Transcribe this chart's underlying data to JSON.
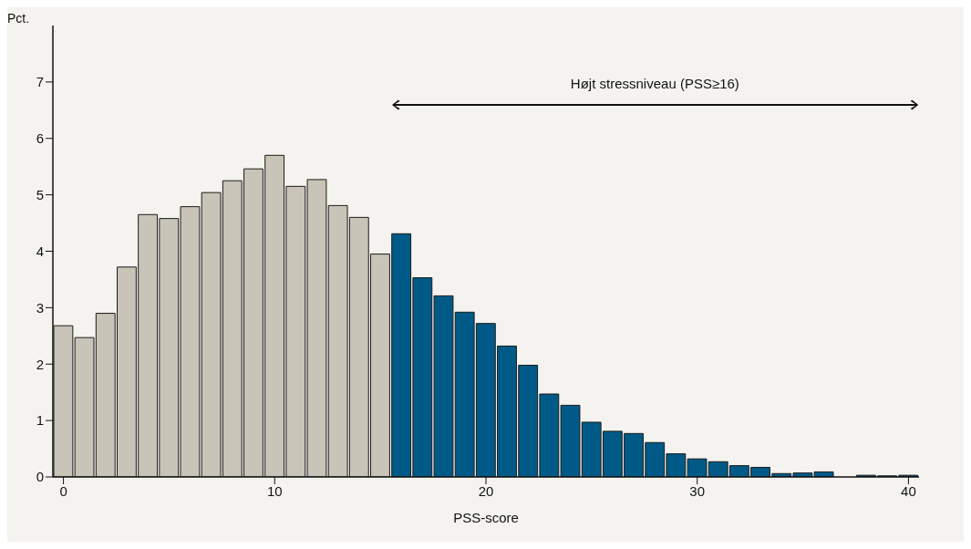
{
  "chart_data": {
    "type": "histogram",
    "xlabel": "PSS-score",
    "ylabel": "Pct.",
    "bins": [
      -0.5,
      0.5,
      1.5,
      2.5,
      3.5,
      4.5,
      5.5,
      6.5,
      7.5,
      8.5,
      9.5,
      10.5,
      11.5,
      12.5,
      13.5,
      14.5,
      15.5,
      16.5,
      17.5,
      18.5,
      19.5,
      20.5,
      21.5,
      22.5,
      23.5,
      24.5,
      25.5,
      26.5,
      27.5,
      28.5,
      29.5,
      30.5,
      31.5,
      32.5,
      33.5,
      34.5,
      35.5,
      36.5,
      37.5,
      38.5,
      39.5,
      40.5
    ],
    "values": [
      2.68,
      2.47,
      2.9,
      3.72,
      4.65,
      4.58,
      4.79,
      5.04,
      5.25,
      5.46,
      5.7,
      5.15,
      5.27,
      4.81,
      4.6,
      3.95,
      4.31,
      3.53,
      3.21,
      2.92,
      2.72,
      2.32,
      1.98,
      1.47,
      1.27,
      0.97,
      0.81,
      0.77,
      0.61,
      0.41,
      0.32,
      0.27,
      0.2,
      0.17,
      0.06,
      0.07,
      0.09,
      0,
      0.03,
      0.02,
      0.03
    ],
    "colors": [
      "#c8c4b7",
      "#c8c4b7",
      "#c8c4b7",
      "#c8c4b7",
      "#c8c4b7",
      "#c8c4b7",
      "#c8c4b7",
      "#c8c4b7",
      "#c8c4b7",
      "#c8c4b7",
      "#c8c4b7",
      "#c8c4b7",
      "#c8c4b7",
      "#c8c4b7",
      "#c8c4b7",
      "#c8c4b7",
      "#005a87",
      "#005a87",
      "#005a87",
      "#005a87",
      "#005a87",
      "#005a87",
      "#005a87",
      "#005a87",
      "#005a87",
      "#005a87",
      "#005a87",
      "#005a87",
      "#005a87",
      "#005a87",
      "#005a87",
      "#005a87",
      "#005a87",
      "#005a87",
      "#005a87",
      "#005a87",
      "#005a87",
      "#005a87",
      "#005a87",
      "#005a87",
      "#005a87"
    ],
    "xlim": [
      -0.5,
      40.5
    ],
    "xticks": [
      0,
      10,
      20,
      30,
      40
    ],
    "ylim": [
      0,
      8
    ],
    "yticks": [
      0,
      1,
      2,
      3,
      4,
      5,
      6,
      7
    ],
    "grid": false,
    "annotations": [
      "Højt stressniveau (PSS≥16)"
    ]
  }
}
